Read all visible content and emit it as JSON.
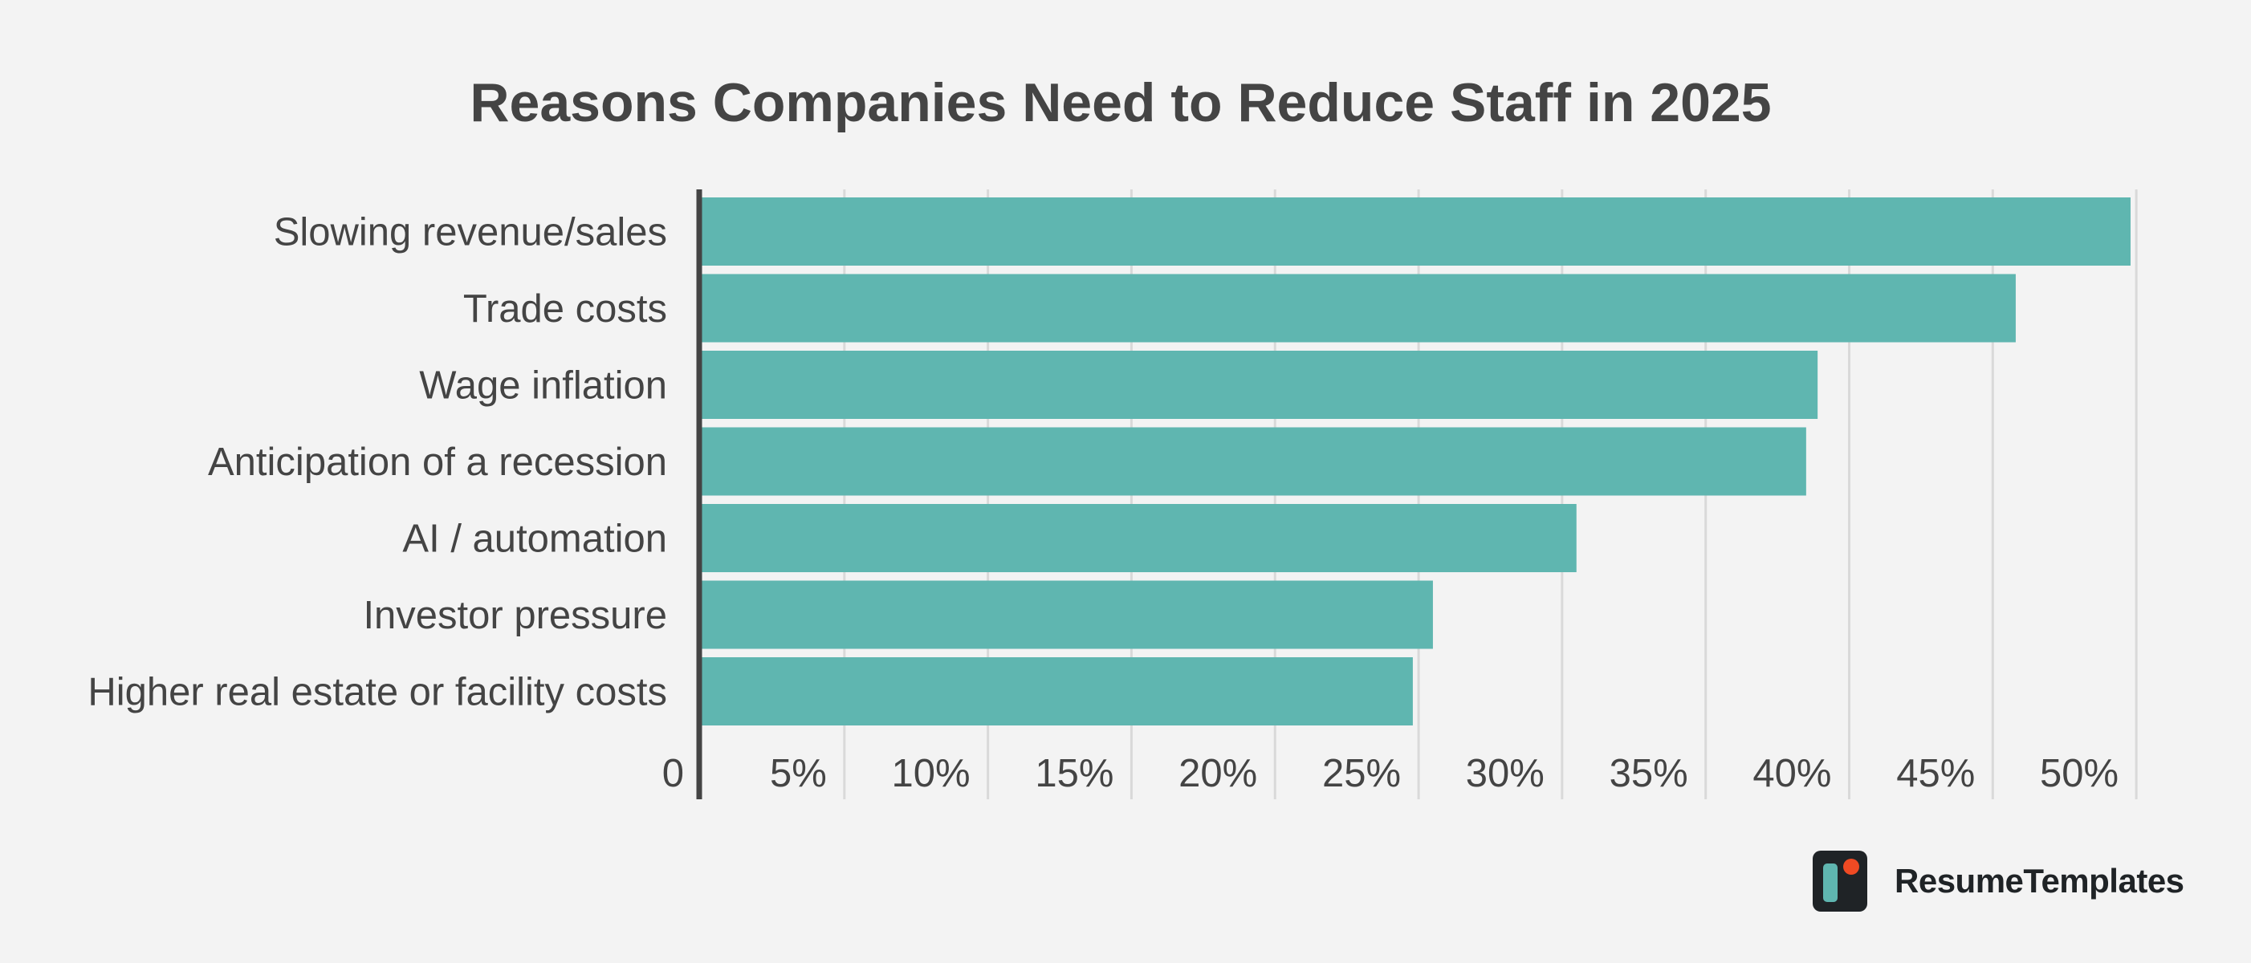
{
  "chart_data": {
    "type": "bar",
    "orientation": "horizontal",
    "title": "Reasons Companies Need to Reduce Staff in 2025",
    "categories": [
      "Slowing revenue/sales",
      "Trade costs",
      "Wage inflation",
      "Anticipation of a recession",
      "AI / automation",
      "Investor pressure",
      "Higher real estate or facility costs"
    ],
    "values": [
      49.8,
      45.8,
      38.9,
      38.5,
      30.5,
      25.5,
      24.8
    ],
    "xlabel": "",
    "ylabel": "",
    "xlim": [
      0,
      50.5
    ],
    "tick_values": [
      0,
      5,
      10,
      15,
      20,
      25,
      30,
      35,
      40,
      45,
      50
    ],
    "tick_labels": [
      "0",
      "5%",
      "10%",
      "15%",
      "20%",
      "25%",
      "30%",
      "35%",
      "40%",
      "45%",
      "50%"
    ],
    "grid": "vertical",
    "legend": "none",
    "bar_color": "#5fb6b0",
    "grid_color": "#d9d9d9",
    "axis_color": "#444444"
  },
  "brand": {
    "name": "ResumeTemplates",
    "logo_icon": "resumetemplates-logo-icon",
    "colors": {
      "dark": "#1f2326",
      "teal": "#5fb6b0",
      "orange": "#ef4a23"
    }
  }
}
